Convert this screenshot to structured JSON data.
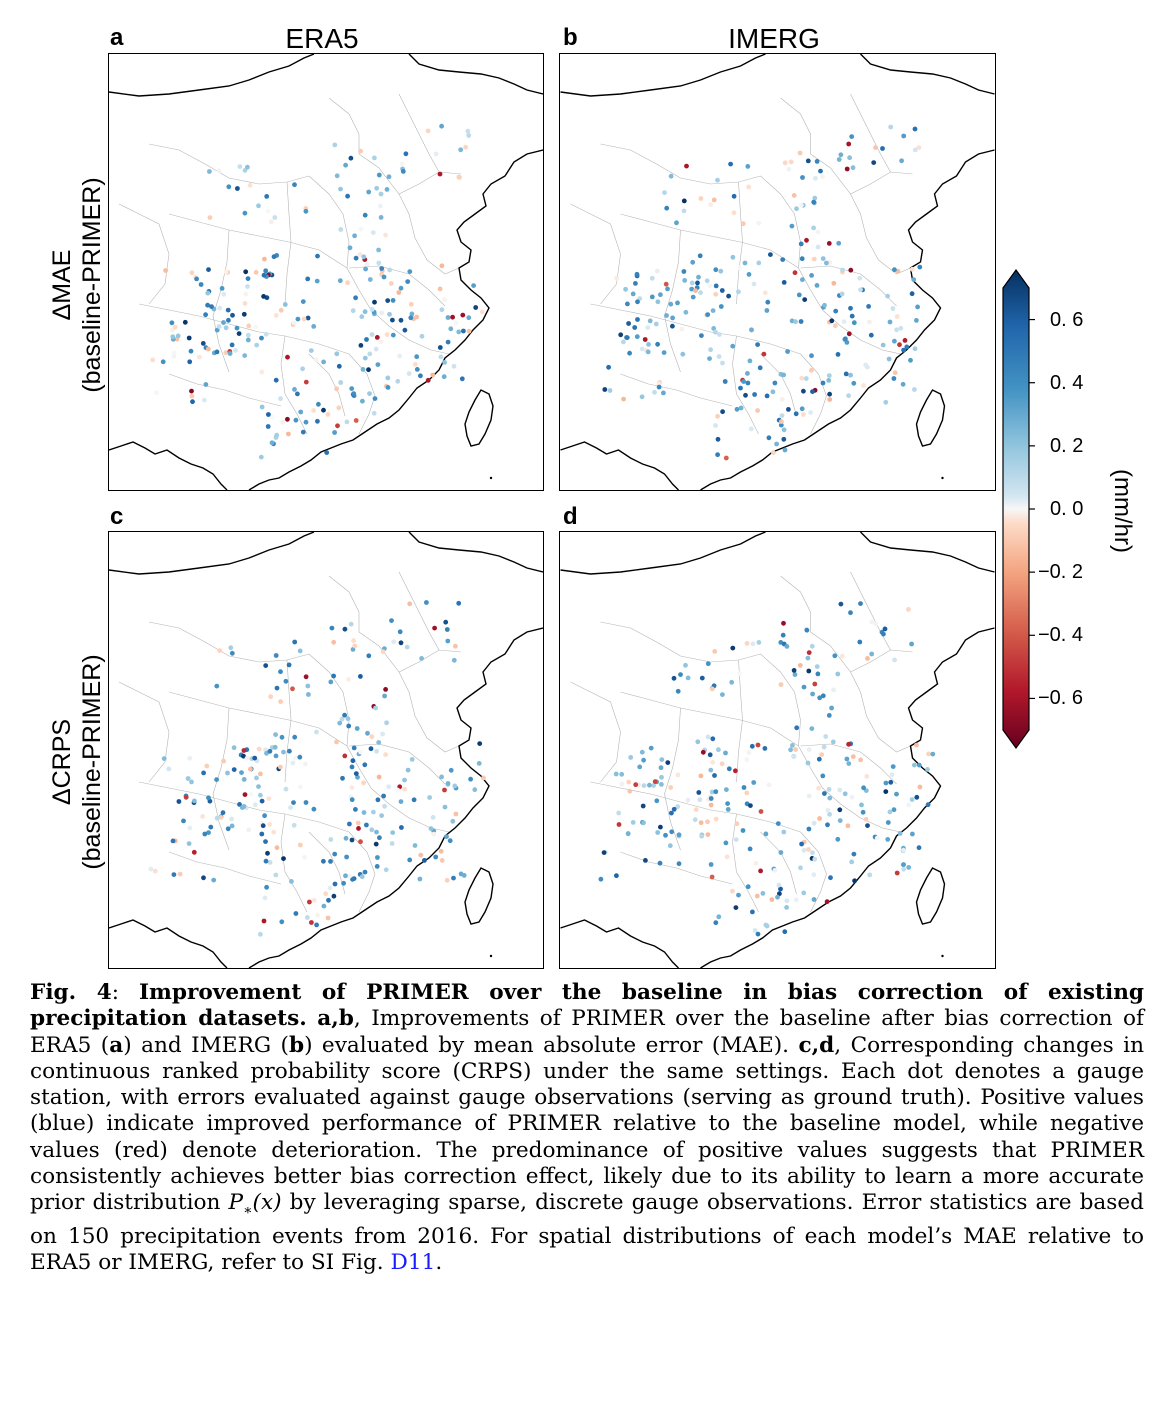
{
  "figure": {
    "panels": [
      {
        "letter": "a",
        "column_title": "ERA5",
        "dataset": "ERA5",
        "metric": "MAE"
      },
      {
        "letter": "b",
        "column_title": "IMERG",
        "dataset": "IMERG",
        "metric": "MAE"
      },
      {
        "letter": "c",
        "column_title": "",
        "dataset": "ERA5",
        "metric": "CRPS"
      },
      {
        "letter": "d",
        "column_title": "",
        "dataset": "IMERG",
        "metric": "CRPS"
      }
    ],
    "row_labels": [
      {
        "line1": "ΔMAE",
        "line2": "(baseline-PRIMER)"
      },
      {
        "line1": "ΔCRPS",
        "line2": "(baseline-PRIMER)"
      }
    ],
    "colorbar": {
      "unit": "(mm/hr)",
      "ticks": [
        "0. 6",
        "0. 4",
        "0. 2",
        "0. 0",
        "−0. 2",
        "−0. 4",
        "−0. 6"
      ],
      "tick_values": [
        0.6,
        0.4,
        0.2,
        0.0,
        -0.2,
        -0.4,
        -0.6
      ],
      "vmin": -0.7,
      "vmax": 0.7,
      "colormap": "RdBu",
      "extend": "both",
      "colors": {
        "negative_end": "#67001f",
        "neutral": "#f7f7f7",
        "positive_end": "#053061"
      }
    }
  },
  "caption": {
    "fig_label": "Fig. 4",
    "title": "Improvement of PRIMER over the baseline in bias correction of existing precipitation datasets.",
    "ab_label": "a,b",
    "text_ab_1": ", Improvements of PRIMER over the baseline after bias correction of ERA5 (",
    "a": "a",
    "text_ab_2": ") and IMERG (",
    "b": "b",
    "text_ab_3": ") evaluated by mean absolute error (MAE). ",
    "cd_label": "c,d",
    "text_cd": ", Corresponding changes in continuous ranked probability score (CRPS) under the same settings. Each dot denotes a gauge station, with errors evaluated against gauge observations (serving as ground truth). Positive values (blue) indicate improved performance of PRIMER relative to the baseline model, while negative values (red) denote deterioration. The predominance of positive values suggests that PRIMER consistently achieves better bias correction effect, likely due to its ability to learn a more accurate prior distribution ",
    "math_P": "P",
    "math_sub": "∗",
    "math_arg": "(x)",
    "text_end": " by leveraging sparse, discrete gauge observations. Error statistics are based on 150 precipitation events from 2016. For spatial distributions of each model’s MAE relative to ERA5 or IMERG, refer to SI Fig. ",
    "ref": "D11",
    "final": "."
  }
}
